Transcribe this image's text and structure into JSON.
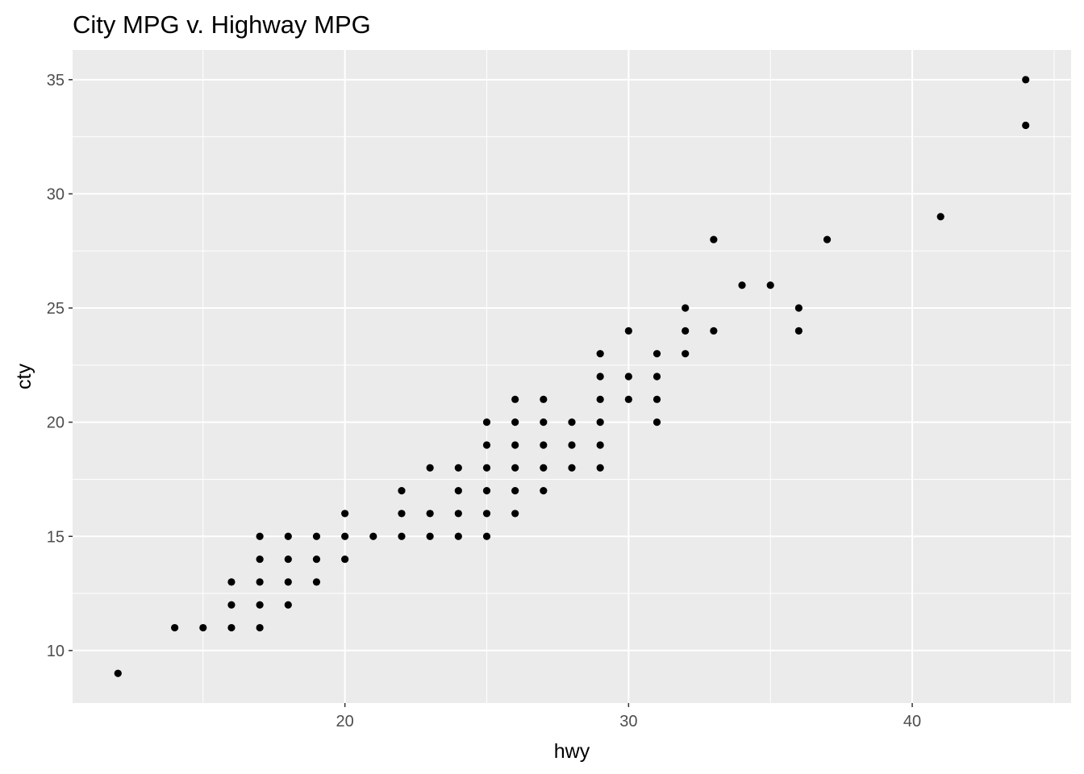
{
  "chart_data": {
    "type": "scatter",
    "title": "City MPG v. Highway MPG",
    "xlabel": "hwy",
    "ylabel": "cty",
    "xlim": [
      10.4,
      45.6
    ],
    "ylim": [
      7.7,
      36.3
    ],
    "xticks": [
      20,
      30,
      40
    ],
    "yticks": [
      10,
      15,
      20,
      25,
      30,
      35
    ],
    "grid": true,
    "points": [
      [
        12,
        9
      ],
      [
        14,
        11
      ],
      [
        15,
        11
      ],
      [
        16,
        11
      ],
      [
        16,
        12
      ],
      [
        16,
        13
      ],
      [
        17,
        11
      ],
      [
        17,
        12
      ],
      [
        17,
        13
      ],
      [
        17,
        14
      ],
      [
        17,
        15
      ],
      [
        18,
        12
      ],
      [
        18,
        13
      ],
      [
        18,
        14
      ],
      [
        18,
        15
      ],
      [
        19,
        13
      ],
      [
        19,
        14
      ],
      [
        19,
        15
      ],
      [
        20,
        14
      ],
      [
        20,
        15
      ],
      [
        20,
        16
      ],
      [
        21,
        15
      ],
      [
        22,
        15
      ],
      [
        22,
        16
      ],
      [
        22,
        17
      ],
      [
        23,
        15
      ],
      [
        23,
        16
      ],
      [
        23,
        18
      ],
      [
        24,
        15
      ],
      [
        24,
        16
      ],
      [
        24,
        17
      ],
      [
        24,
        18
      ],
      [
        25,
        15
      ],
      [
        25,
        16
      ],
      [
        25,
        17
      ],
      [
        25,
        18
      ],
      [
        25,
        19
      ],
      [
        25,
        20
      ],
      [
        26,
        16
      ],
      [
        26,
        17
      ],
      [
        26,
        18
      ],
      [
        26,
        19
      ],
      [
        26,
        20
      ],
      [
        26,
        21
      ],
      [
        27,
        17
      ],
      [
        27,
        18
      ],
      [
        27,
        19
      ],
      [
        27,
        20
      ],
      [
        27,
        21
      ],
      [
        28,
        18
      ],
      [
        28,
        19
      ],
      [
        28,
        20
      ],
      [
        29,
        18
      ],
      [
        29,
        19
      ],
      [
        29,
        20
      ],
      [
        29,
        21
      ],
      [
        29,
        22
      ],
      [
        29,
        23
      ],
      [
        30,
        21
      ],
      [
        30,
        22
      ],
      [
        30,
        24
      ],
      [
        31,
        20
      ],
      [
        31,
        21
      ],
      [
        31,
        22
      ],
      [
        31,
        23
      ],
      [
        32,
        23
      ],
      [
        32,
        24
      ],
      [
        32,
        25
      ],
      [
        33,
        24
      ],
      [
        33,
        28
      ],
      [
        34,
        26
      ],
      [
        35,
        26
      ],
      [
        36,
        24
      ],
      [
        36,
        25
      ],
      [
        37,
        28
      ],
      [
        41,
        29
      ],
      [
        44,
        33
      ],
      [
        44,
        35
      ]
    ],
    "colors": {
      "panel_background": "#ebebeb",
      "grid_major": "#ffffff",
      "point": "#000000",
      "tick_text": "#4d4d4d",
      "tick_mark": "#333333"
    }
  }
}
